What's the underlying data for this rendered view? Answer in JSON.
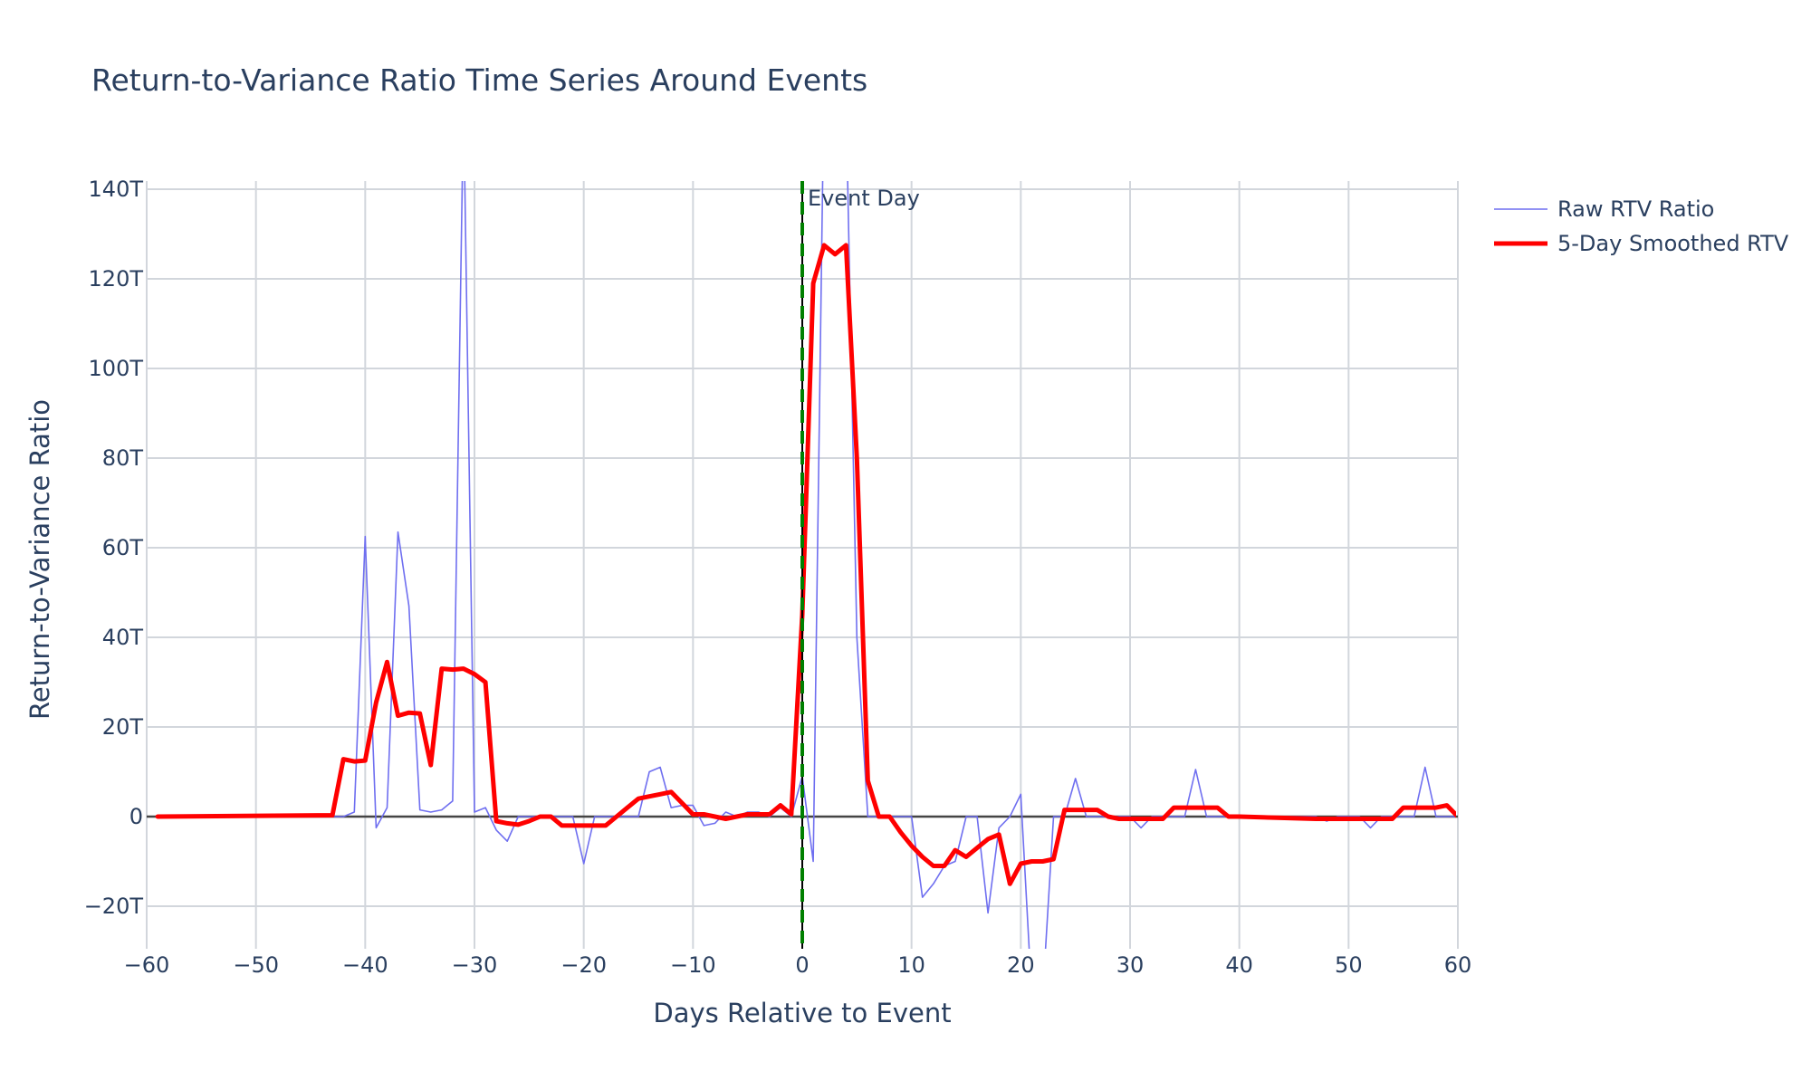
{
  "chart_data": {
    "type": "line",
    "title": "Return-to-Variance Ratio Time Series Around Events",
    "xlabel": "Days Relative to Event",
    "ylabel": "Return-to-Variance Ratio",
    "xlim": [
      -60,
      60
    ],
    "ylim": [
      -30,
      141
    ],
    "x_ticks": [
      -60,
      -50,
      -40,
      -30,
      -20,
      -10,
      0,
      10,
      20,
      30,
      40,
      50,
      60
    ],
    "x_tick_labels": [
      "−60",
      "−50",
      "−40",
      "−30",
      "−20",
      "−10",
      "0",
      "10",
      "20",
      "30",
      "40",
      "50",
      "60"
    ],
    "y_ticks": [
      -20,
      0,
      20,
      40,
      60,
      80,
      100,
      120,
      140
    ],
    "y_tick_labels": [
      "−20T",
      "0",
      "20T",
      "40T",
      "60T",
      "80T",
      "100T",
      "120T",
      "140T"
    ],
    "grid": true,
    "legend_position": "top-right",
    "annotations": [
      {
        "text": "Event Day",
        "x": 0,
        "y": 138
      }
    ],
    "event_line": {
      "x": 0,
      "style": "dashed",
      "color": "#008000"
    },
    "series": [
      {
        "name": "Raw RTV Ratio",
        "color": "#6f6ff0",
        "x": [
          -59,
          -43,
          -42,
          -41,
          -40,
          -39,
          -38,
          -37,
          -36,
          -35,
          -34,
          -33,
          -32,
          -31,
          -30,
          -29,
          -28,
          -27,
          -26,
          -25,
          -24,
          -23,
          -22,
          -21,
          -20,
          -19,
          -18,
          -17,
          -16,
          -15,
          -14,
          -13,
          -12,
          -11,
          -10,
          -9,
          -8,
          -7,
          -6,
          -5,
          -4,
          -3,
          -2,
          -1,
          0,
          1,
          2,
          3,
          4,
          5,
          6,
          7,
          8,
          9,
          10,
          11,
          12,
          13,
          14,
          15,
          16,
          17,
          18,
          19,
          20,
          21,
          22,
          23,
          24,
          25,
          26,
          27,
          28,
          29,
          30,
          31,
          32,
          33,
          34,
          35,
          36,
          37,
          38,
          39,
          40,
          47,
          48,
          49,
          50,
          51,
          52,
          53,
          54,
          55,
          56,
          57,
          58,
          59,
          60
        ],
        "values": [
          0,
          0,
          0,
          1,
          62.5,
          -2.5,
          2,
          63.5,
          47,
          1.5,
          1,
          1.5,
          3.5,
          160,
          1,
          2,
          -3,
          -5.5,
          0,
          0,
          0,
          0,
          0,
          0,
          -10.5,
          0,
          0,
          0,
          0,
          0,
          10,
          11,
          2,
          2.5,
          2.5,
          -2,
          -1.5,
          1,
          0,
          1,
          1,
          0,
          2,
          0,
          9,
          -10,
          165,
          150,
          160,
          40,
          0,
          0,
          0,
          0,
          0,
          -18,
          -15,
          -11,
          -10,
          0,
          0,
          -21.5,
          -2.5,
          0,
          5,
          -40,
          -40,
          0,
          0,
          8.5,
          0,
          0,
          0,
          0,
          0,
          -2.5,
          0,
          0,
          0,
          0,
          10.5,
          0,
          0,
          0,
          0,
          0,
          -1,
          0,
          0,
          0,
          -2.5,
          0,
          0,
          0,
          0,
          11,
          0,
          0,
          0
        ]
      },
      {
        "name": "5-Day Smoothed RTV",
        "color": "#ff0000",
        "x": [
          -59,
          -43,
          -42,
          -41,
          -40,
          -39,
          -38,
          -37,
          -36,
          -35,
          -34,
          -33,
          -32,
          -31,
          -30,
          -29,
          -28,
          -27,
          -26,
          -25,
          -24,
          -23,
          -22,
          -21,
          -20,
          -19,
          -18,
          -17,
          -16,
          -15,
          -14,
          -13,
          -12,
          -11,
          -10,
          -9,
          -8,
          -7,
          -6,
          -5,
          -4,
          -3,
          -2,
          -1,
          0,
          1,
          2,
          3,
          4,
          5,
          6,
          7,
          8,
          9,
          10,
          11,
          12,
          13,
          14,
          15,
          16,
          17,
          18,
          19,
          20,
          21,
          22,
          23,
          24,
          25,
          26,
          27,
          28,
          29,
          30,
          31,
          32,
          33,
          34,
          35,
          36,
          37,
          38,
          39,
          40,
          47,
          48,
          49,
          50,
          51,
          52,
          53,
          54,
          55,
          56,
          57,
          58,
          59,
          60
        ],
        "values": [
          0,
          0.3,
          12.8,
          12.3,
          12.5,
          25.5,
          34.5,
          22.5,
          23.2,
          23,
          11.5,
          33,
          32.8,
          33,
          31.8,
          30,
          -1,
          -1.5,
          -1.8,
          -1,
          0,
          0,
          -2,
          -2,
          -2,
          -2,
          -2,
          0,
          2,
          4,
          4.5,
          5,
          5.5,
          3,
          0.5,
          0.5,
          0,
          -0.5,
          0,
          0.5,
          0.5,
          0.5,
          2.5,
          0.5,
          45,
          119,
          127.5,
          125.5,
          127.5,
          80,
          8,
          0,
          0,
          -3.5,
          -6.5,
          -9,
          -11,
          -11,
          -7.5,
          -9,
          -7,
          -5,
          -4,
          -15,
          -10.5,
          -10,
          -10,
          -9.5,
          1.5,
          1.5,
          1.5,
          1.5,
          0,
          -0.5,
          -0.5,
          -0.5,
          -0.5,
          -0.5,
          2,
          2,
          2,
          2,
          2,
          0,
          0,
          -0.5,
          -0.5,
          -0.5,
          -0.5,
          -0.5,
          -0.5,
          -0.5,
          -0.5,
          2,
          2,
          2,
          2,
          2.5,
          0
        ]
      }
    ]
  }
}
